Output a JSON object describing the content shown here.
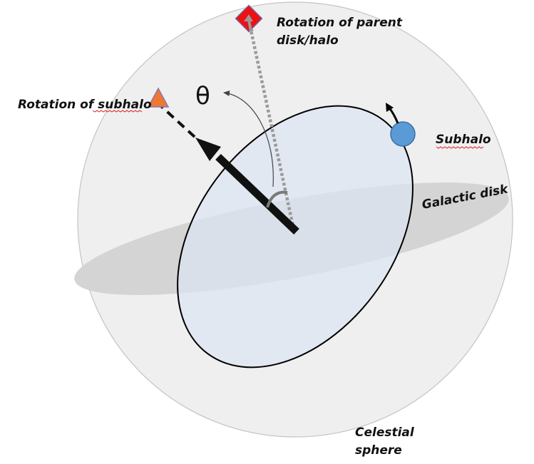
{
  "labels": {
    "parent_rotation_line1": "Rotation of parent",
    "parent_rotation_line2": "disk/halo",
    "subhalo_rotation": "Rotation of subhalo",
    "theta": "θ",
    "subhalo": "Subhalo",
    "galactic_disk": "Galactic disk",
    "celestial_sphere_line1": "Celestial",
    "celestial_sphere_line2": "sphere"
  },
  "colors": {
    "sphere_fill": "#efefef",
    "galactic_disk_fill": "#d4d4d4",
    "orbit_plane_fill": "#e3e9f3",
    "parent_marker": "#ee1111",
    "subhalo_marker": "#ee7733",
    "subhalo_body": "#5b9bd5",
    "parent_axis": "#9a9a9a",
    "subhalo_axis": "#111111"
  },
  "icons": {
    "parent_marker": "red-diamond",
    "subhalo_marker": "orange-triangle",
    "subhalo_body": "blue-circle"
  }
}
